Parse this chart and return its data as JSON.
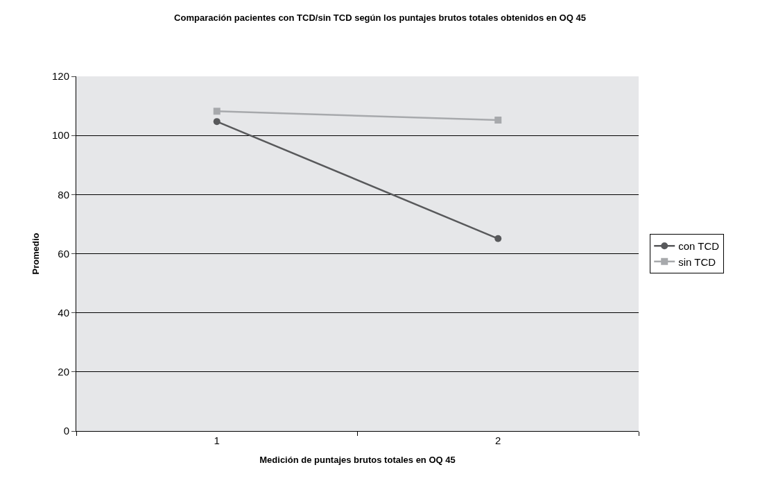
{
  "chart_data": {
    "type": "line",
    "title": "Comparación pacientes con TCD/sin TCD según los puntajes brutos totales obtenidos en OQ 45",
    "xlabel": "Medición de puntajes brutos totales en OQ 45",
    "ylabel": "Promedio",
    "categories": [
      "1",
      "2"
    ],
    "series": [
      {
        "name": "con TCD",
        "color": "#58595b",
        "values": [
          104.7,
          65.1
        ],
        "marker": "circle"
      },
      {
        "name": "sin TCD",
        "color": "#a7a9ac",
        "values": [
          108.2,
          105.2
        ],
        "marker": "square"
      }
    ],
    "ylim": [
      0,
      120
    ],
    "yticks": [
      0,
      20,
      40,
      60,
      80,
      100,
      120
    ],
    "grid": "y",
    "legend": "right",
    "line_style": "solid"
  }
}
